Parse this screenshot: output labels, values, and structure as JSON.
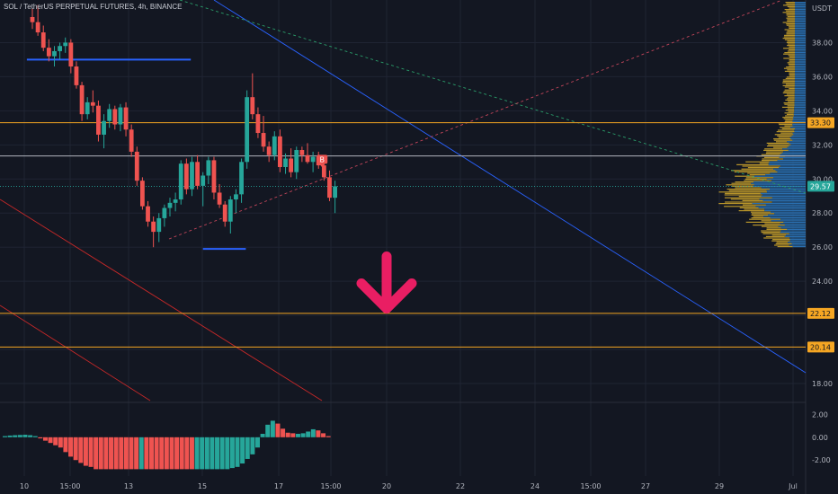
{
  "header": {
    "symbol": "SOL",
    "title_rest": " / TetherUS PERPETUAL FUTURES, 4h, BINANCE"
  },
  "colors": {
    "background": "#131722",
    "up": "#26a69a",
    "down": "#ef5350",
    "grid": "#1f2433",
    "level_line": "#f5a623",
    "blue_line": "#2962ff",
    "arrow": "#e91e63",
    "profile_gold": "#b8952a",
    "profile_blue": "#2a6fb0"
  },
  "chart_data": {
    "type": "candlestick",
    "interval": "4h",
    "currency": "USDT",
    "y_axis": {
      "ticks": [
        "38.00",
        "36.00",
        "34.00",
        "32.00",
        "30.00",
        "28.00",
        "26.00",
        "24.00",
        "22.00",
        "20.00",
        "18.00"
      ],
      "ylim": [
        17.0,
        40.5
      ]
    },
    "x_axis": {
      "ticks": [
        "10",
        "15:00",
        "13",
        "15",
        "17",
        "15:00",
        "20",
        "22",
        "24",
        "15:00",
        "27",
        "29",
        "Jul"
      ]
    },
    "price_labels": [
      {
        "value": 33.3,
        "text": "33.30",
        "kind": "level"
      },
      {
        "value": 29.57,
        "text": "29.57",
        "kind": "last"
      },
      {
        "value": 22.12,
        "text": "22.12",
        "kind": "level"
      },
      {
        "value": 20.14,
        "text": "20.14",
        "kind": "level"
      }
    ],
    "horizontal_levels": [
      33.3,
      31.35,
      22.12,
      20.14
    ],
    "drawn_lines": [
      {
        "kind": "support",
        "price": 37.0,
        "from_bar": -1,
        "to_bar": 35
      },
      {
        "kind": "support",
        "price": 25.9,
        "from_bar": 31,
        "to_bar": 45
      }
    ],
    "candles": [
      [
        39.5,
        40.0,
        38.8,
        39.2
      ],
      [
        39.2,
        40.2,
        38.4,
        38.6
      ],
      [
        38.6,
        39.0,
        37.5,
        37.7
      ],
      [
        37.7,
        38.2,
        36.9,
        37.2
      ],
      [
        37.2,
        37.8,
        36.6,
        37.5
      ],
      [
        37.5,
        38.0,
        37.0,
        37.8
      ],
      [
        37.8,
        38.3,
        37.4,
        38.0
      ],
      [
        38.0,
        38.2,
        36.2,
        36.6
      ],
      [
        36.6,
        36.9,
        35.3,
        35.5
      ],
      [
        35.5,
        35.7,
        33.4,
        33.8
      ],
      [
        33.8,
        34.8,
        33.5,
        34.5
      ],
      [
        34.5,
        35.2,
        33.9,
        34.3
      ],
      [
        34.3,
        34.6,
        32.2,
        32.6
      ],
      [
        32.6,
        33.8,
        31.8,
        33.4
      ],
      [
        33.4,
        34.4,
        33.0,
        34.1
      ],
      [
        34.1,
        34.3,
        32.9,
        33.2
      ],
      [
        33.2,
        34.4,
        32.8,
        34.2
      ],
      [
        34.2,
        34.5,
        32.5,
        32.9
      ],
      [
        32.9,
        33.2,
        31.3,
        31.6
      ],
      [
        31.6,
        31.9,
        29.6,
        29.9
      ],
      [
        29.9,
        30.1,
        28.2,
        28.4
      ],
      [
        28.4,
        28.7,
        27.2,
        27.5
      ],
      [
        27.5,
        27.8,
        26.0,
        26.9
      ],
      [
        26.9,
        28.0,
        26.3,
        27.7
      ],
      [
        27.7,
        28.5,
        27.2,
        28.3
      ],
      [
        28.3,
        28.9,
        27.8,
        28.6
      ],
      [
        28.6,
        29.2,
        28.1,
        28.8
      ],
      [
        28.8,
        31.1,
        28.5,
        30.9
      ],
      [
        30.9,
        31.2,
        29.1,
        29.4
      ],
      [
        29.4,
        31.3,
        29.0,
        31.0
      ],
      [
        31.0,
        31.4,
        29.4,
        29.6
      ],
      [
        29.6,
        30.4,
        28.4,
        30.2
      ],
      [
        30.2,
        31.3,
        29.7,
        31.1
      ],
      [
        31.1,
        31.3,
        28.8,
        29.2
      ],
      [
        29.2,
        29.7,
        28.3,
        28.5
      ],
      [
        28.5,
        28.7,
        27.2,
        27.5
      ],
      [
        27.5,
        29.0,
        26.8,
        28.8
      ],
      [
        28.8,
        29.4,
        28.0,
        29.1
      ],
      [
        29.1,
        31.2,
        28.6,
        31.0
      ],
      [
        31.0,
        35.2,
        30.6,
        34.8
      ],
      [
        34.8,
        36.2,
        33.5,
        33.8
      ],
      [
        33.8,
        34.2,
        32.4,
        32.7
      ],
      [
        32.7,
        33.7,
        31.6,
        31.9
      ],
      [
        31.9,
        32.2,
        31.0,
        31.4
      ],
      [
        31.4,
        32.8,
        31.1,
        32.5
      ],
      [
        32.5,
        32.9,
        30.4,
        30.7
      ],
      [
        30.7,
        31.5,
        30.3,
        31.2
      ],
      [
        31.2,
        31.8,
        30.1,
        30.4
      ],
      [
        30.4,
        31.9,
        30.0,
        31.7
      ],
      [
        31.7,
        31.9,
        31.0,
        31.4
      ],
      [
        31.4,
        32.1,
        30.9,
        31.0
      ],
      [
        31.0,
        31.6,
        30.4,
        31.3
      ],
      [
        31.3,
        31.6,
        30.6,
        30.8
      ],
      [
        30.8,
        31.4,
        29.9,
        30.1
      ],
      [
        30.1,
        30.5,
        28.7,
        28.9
      ],
      [
        28.9,
        29.9,
        28.0,
        29.57
      ]
    ],
    "signal_badge": {
      "text": "B",
      "bar": 52,
      "price": 31.1
    },
    "arrow": {
      "direction": "down",
      "price_top": 25.3,
      "price_bottom": 23.4,
      "bar": 61
    },
    "volume_profile_note_levels": [
      26.0,
      39.5
    ],
    "oscillator": {
      "type": "histogram",
      "ticks": [
        "2.00",
        "0.00",
        "-2.00"
      ],
      "ylim": [
        -3.4,
        2.9
      ],
      "values": [
        0.1,
        0.15,
        0.18,
        0.2,
        0.22,
        0.18,
        0.1,
        -0.1,
        -0.3,
        -0.5,
        -0.7,
        -0.9,
        -1.3,
        -1.7,
        -2.0,
        -2.25,
        -2.5,
        -2.6,
        -2.8,
        -2.8,
        -2.8,
        -2.8,
        -2.8,
        -2.8,
        -2.8,
        -2.8,
        -2.8,
        -2.8,
        -2.8,
        -2.8,
        -2.8,
        -2.8,
        -2.8,
        -2.8,
        -2.8,
        -2.8,
        -2.8,
        -2.8,
        -2.8,
        -2.8,
        -2.8,
        -2.8,
        -2.8,
        -2.8,
        -2.8,
        -2.7,
        -2.6,
        -2.3,
        -1.9,
        -1.5,
        -0.9,
        0.3,
        1.1,
        1.45,
        1.2,
        0.75,
        0.4,
        0.35,
        0.3,
        0.35,
        0.5,
        0.7,
        0.6,
        0.35,
        0.1
      ],
      "colors": [
        "up",
        "up",
        "up",
        "up",
        "up",
        "up",
        "up",
        "down",
        "down",
        "down",
        "down",
        "down",
        "down",
        "down",
        "down",
        "down",
        "down",
        "down",
        "down",
        "down",
        "down",
        "down",
        "down",
        "down",
        "down",
        "down",
        "down",
        "up",
        "down",
        "down",
        "down",
        "down",
        "down",
        "down",
        "down",
        "down",
        "down",
        "down",
        "up",
        "up",
        "up",
        "up",
        "up",
        "up",
        "up",
        "up",
        "up",
        "up",
        "up",
        "up",
        "up",
        "up",
        "up",
        "up",
        "down",
        "down",
        "down",
        "down",
        "up",
        "up",
        "up",
        "up",
        "down",
        "down",
        "down"
      ]
    }
  }
}
